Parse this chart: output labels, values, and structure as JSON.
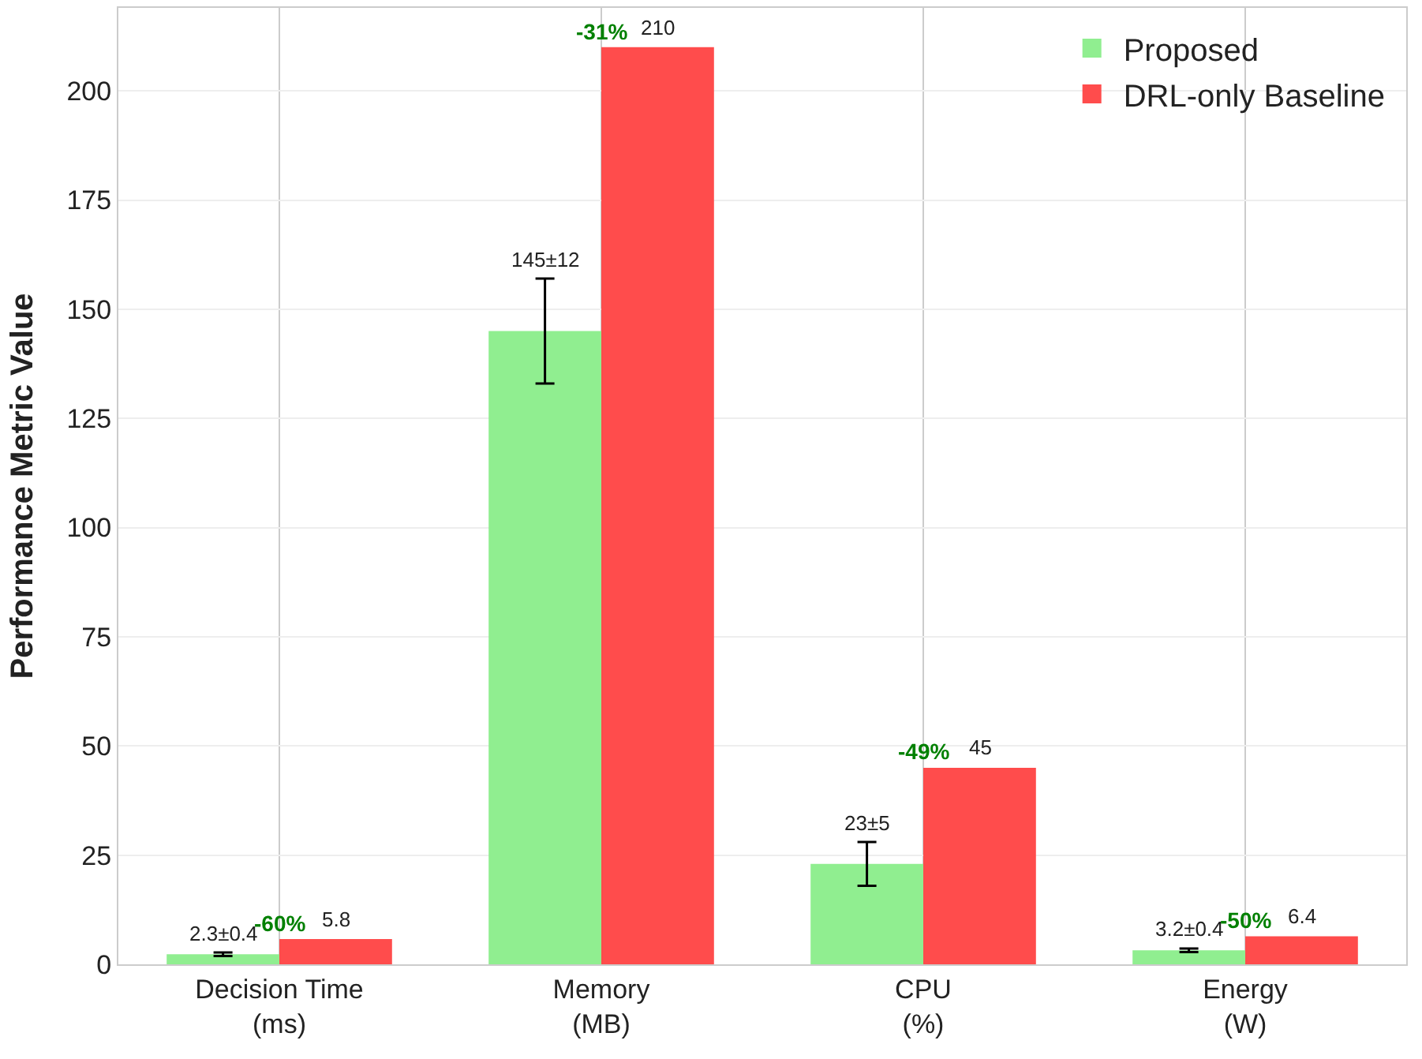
{
  "chart_data": {
    "type": "bar",
    "ylabel": "Performance Metric Value",
    "categories": [
      "Decision Time\n(ms)",
      "Memory\n(MB)",
      "CPU\n(%)",
      "Energy\n(W)"
    ],
    "series": [
      {
        "name": "Proposed",
        "color": "#90ee90",
        "values": [
          2.3,
          145,
          23,
          3.2
        ],
        "errors": [
          0.4,
          12,
          5,
          0.4
        ],
        "value_labels": [
          "2.3±0.4",
          "145±12",
          "23±5",
          "3.2±0.4"
        ]
      },
      {
        "name": "DRL-only Baseline",
        "color": "#ff4c4c",
        "values": [
          5.8,
          210,
          45,
          6.4
        ],
        "value_labels": [
          "5.8",
          "210",
          "45",
          "6.4"
        ]
      }
    ],
    "annotations": [
      "-60%",
      "-31%",
      "-49%",
      "-50%"
    ],
    "ylim": [
      0,
      219
    ],
    "yticks": [
      0,
      25,
      50,
      75,
      100,
      125,
      150,
      175,
      200
    ],
    "grid": true,
    "legend": "top right"
  }
}
